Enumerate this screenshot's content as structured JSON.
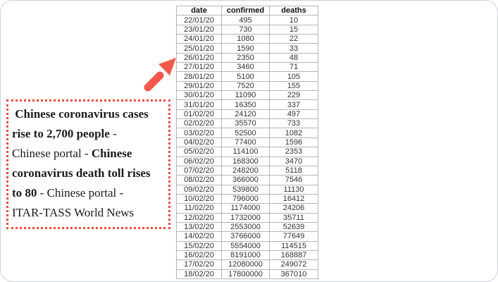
{
  "colors": {
    "card_border": "#ccd3d7",
    "annotation_border": "#ea4c40",
    "arrow": "#f2594b",
    "table_border": "#b5b5b5",
    "table_text": "#333333",
    "annotation_text": "#1b1b1b"
  },
  "annotation": {
    "full_text": " Chinese coronavirus cases rise to 2,700 people - Chinese portal - Chinese coronavirus death toll rises to 80 - Chinese portal - ITAR-TASS World News",
    "lines": [
      [
        {
          "bold": true,
          "text": " Chinese coronavirus cases"
        }
      ],
      [
        {
          "bold": true,
          "text": "rise to 2,700 people"
        },
        {
          "bold": false,
          "text": " - "
        }
      ],
      [
        {
          "bold": false,
          "text": "Chinese portal - "
        },
        {
          "bold": true,
          "text": "Chinese"
        }
      ],
      [
        {
          "bold": true,
          "text": "coronavirus death toll rises"
        }
      ],
      [
        {
          "bold": true,
          "text": "to 80"
        },
        {
          "bold": false,
          "text": " - Chinese portal -"
        }
      ],
      [
        {
          "bold": false,
          "text": "ITAR-TASS World News"
        }
      ]
    ]
  },
  "chart_data": {
    "type": "table",
    "headers": [
      "date",
      "confirmed",
      "deaths"
    ],
    "rows": [
      [
        "22/01/20",
        495,
        10
      ],
      [
        "23/01/20",
        730,
        15
      ],
      [
        "24/01/20",
        1080,
        22
      ],
      [
        "25/01/20",
        1590,
        33
      ],
      [
        "26/01/20",
        2350,
        48
      ],
      [
        "27/01/20",
        3460,
        71
      ],
      [
        "28/01/20",
        5100,
        105
      ],
      [
        "29/01/20",
        7520,
        155
      ],
      [
        "30/01/20",
        11090,
        229
      ],
      [
        "31/01/20",
        16350,
        337
      ],
      [
        "01/02/20",
        24120,
        497
      ],
      [
        "02/02/20",
        35570,
        733
      ],
      [
        "03/02/20",
        52500,
        1082
      ],
      [
        "04/02/20",
        77400,
        1596
      ],
      [
        "05/02/20",
        114100,
        2353
      ],
      [
        "06/02/20",
        168300,
        3470
      ],
      [
        "07/02/20",
        248200,
        5118
      ],
      [
        "08/02/20",
        366000,
        7546
      ],
      [
        "09/02/20",
        539800,
        11130
      ],
      [
        "10/02/20",
        796000,
        16412
      ],
      [
        "11/02/20",
        1174000,
        24206
      ],
      [
        "12/02/20",
        1732000,
        35711
      ],
      [
        "13/02/20",
        2553000,
        52639
      ],
      [
        "14/02/20",
        3766000,
        77649
      ],
      [
        "15/02/20",
        5554000,
        114515
      ],
      [
        "16/02/20",
        8191000,
        168887
      ],
      [
        "17/02/20",
        12080000,
        249072
      ],
      [
        "18/02/20",
        17800000,
        367010
      ]
    ]
  }
}
